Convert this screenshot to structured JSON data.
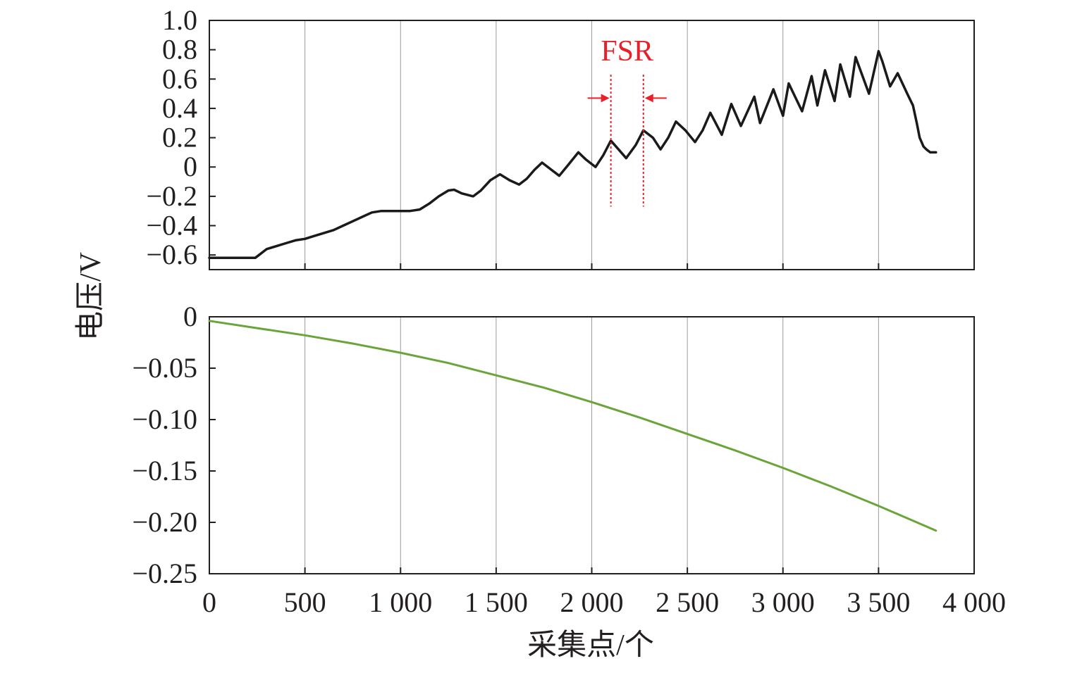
{
  "colors": {
    "top_series": "#1a1a1a",
    "bottom_series": "#6aa53a",
    "annotation": "#e8202a",
    "grid": "#9a9a9a",
    "axis": "#231f20"
  },
  "chart_data": [
    {
      "type": "line",
      "panel": "top",
      "xlim": [
        0,
        4000
      ],
      "ylim": [
        -0.7,
        1.0
      ],
      "grid": "vertical",
      "y_ticks": [
        1.0,
        0.8,
        0.6,
        0.4,
        0.2,
        0,
        -0.2,
        -0.4,
        -0.6
      ],
      "y_tick_labels": [
        "1.0",
        "0.8",
        "0.6",
        "0.4",
        "0.2",
        "0",
        "−0.2",
        "−0.4",
        "−0.6"
      ],
      "x_ticks": [
        0,
        500,
        1000,
        1500,
        2000,
        2500,
        3000,
        3500,
        4000
      ],
      "series": [
        {
          "color": "#1a1a1a",
          "x": [
            0,
            240,
            260,
            300,
            350,
            400,
            450,
            500,
            550,
            600,
            650,
            700,
            750,
            800,
            850,
            900,
            950,
            1000,
            1050,
            1100,
            1150,
            1200,
            1250,
            1280,
            1320,
            1380,
            1420,
            1470,
            1520,
            1570,
            1620,
            1660,
            1700,
            1740,
            1790,
            1830,
            1880,
            1930,
            1970,
            2020,
            2060,
            2100,
            2140,
            2180,
            2230,
            2270,
            2320,
            2360,
            2400,
            2440,
            2490,
            2540,
            2580,
            2620,
            2680,
            2730,
            2780,
            2850,
            2880,
            2950,
            3000,
            3030,
            3100,
            3150,
            3180,
            3220,
            3270,
            3300,
            3350,
            3380,
            3450,
            3500,
            3520,
            3560,
            3600,
            3650,
            3680,
            3700,
            3715,
            3735,
            3750,
            3760,
            3770,
            3780,
            3790,
            3800
          ],
          "y": [
            -0.62,
            -0.62,
            -0.6,
            -0.56,
            -0.54,
            -0.52,
            -0.5,
            -0.49,
            -0.47,
            -0.45,
            -0.43,
            -0.4,
            -0.37,
            -0.34,
            -0.31,
            -0.3,
            -0.3,
            -0.3,
            -0.3,
            -0.29,
            -0.25,
            -0.2,
            -0.16,
            -0.155,
            -0.18,
            -0.2,
            -0.16,
            -0.09,
            -0.05,
            -0.09,
            -0.12,
            -0.08,
            -0.02,
            0.03,
            -0.02,
            -0.06,
            0.02,
            0.1,
            0.05,
            0.0,
            0.08,
            0.18,
            0.12,
            0.06,
            0.15,
            0.25,
            0.2,
            0.12,
            0.2,
            0.31,
            0.25,
            0.17,
            0.25,
            0.37,
            0.22,
            0.43,
            0.28,
            0.48,
            0.3,
            0.53,
            0.35,
            0.57,
            0.38,
            0.62,
            0.42,
            0.66,
            0.45,
            0.7,
            0.48,
            0.75,
            0.5,
            0.79,
            0.72,
            0.55,
            0.64,
            0.5,
            0.42,
            0.3,
            0.2,
            0.14,
            0.12,
            0.11,
            0.1,
            0.1,
            0.1,
            0.1
          ]
        }
      ],
      "annotation": {
        "text": "FSR",
        "x1": 2100,
        "x2": 2270,
        "y_top": 0.63,
        "y_bottom": -0.27,
        "arrow_y": 0.47
      }
    },
    {
      "type": "line",
      "panel": "bottom",
      "xlim": [
        0,
        4000
      ],
      "ylim": [
        -0.25,
        0
      ],
      "grid": "vertical",
      "y_ticks": [
        0,
        -0.05,
        -0.1,
        -0.15,
        -0.2,
        -0.25
      ],
      "y_tick_labels": [
        "0",
        "−0.05",
        "−0.10",
        "−0.15",
        "−0.20",
        "−0.25"
      ],
      "x_ticks": [
        0,
        500,
        1000,
        1500,
        2000,
        2500,
        3000,
        3500,
        4000
      ],
      "x_tick_labels": [
        "0",
        "500",
        "1 000",
        "1 500",
        "2 000",
        "2 500",
        "3 000",
        "3 500",
        "4 000"
      ],
      "series": [
        {
          "color": "#6aa53a",
          "x": [
            0,
            250,
            500,
            750,
            1000,
            1250,
            1500,
            1750,
            2000,
            2250,
            2500,
            2750,
            3000,
            3250,
            3500,
            3800
          ],
          "y": [
            -0.004,
            -0.011,
            -0.018,
            -0.026,
            -0.035,
            -0.045,
            -0.057,
            -0.069,
            -0.083,
            -0.098,
            -0.114,
            -0.13,
            -0.147,
            -0.165,
            -0.184,
            -0.208
          ]
        }
      ]
    }
  ],
  "y_axis_title": "电压/V",
  "x_axis_title": "采集点/个"
}
